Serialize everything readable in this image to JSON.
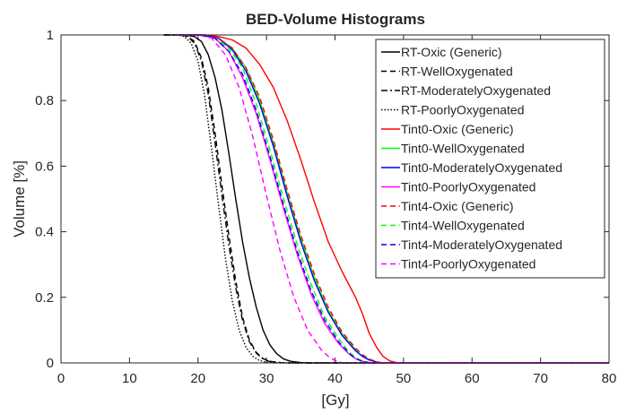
{
  "chart_data": {
    "type": "line",
    "title": "BED-Volume Histograms",
    "xlabel": "[Gy]",
    "ylabel": "Volume [%]",
    "xlim": [
      0,
      80
    ],
    "ylim": [
      0,
      1
    ],
    "xticks": [
      0,
      10,
      20,
      30,
      40,
      50,
      60,
      70,
      80
    ],
    "yticks": [
      0,
      0.2,
      0.4,
      0.6,
      0.8,
      1
    ],
    "xtick_labels": [
      "0",
      "10",
      "20",
      "30",
      "40",
      "50",
      "60",
      "70",
      "80"
    ],
    "ytick_labels": [
      "0",
      "0.2",
      "0.4",
      "0.6",
      "0.8",
      "1"
    ],
    "grid": false,
    "legend_position": "top-right",
    "series": [
      {
        "name": "RT-Oxic (Generic)",
        "color": "#000000",
        "dash": "solid",
        "points": [
          [
            15,
            1
          ],
          [
            18,
            1
          ],
          [
            19.5,
            0.995
          ],
          [
            20.5,
            0.98
          ],
          [
            21.5,
            0.94
          ],
          [
            22.5,
            0.87
          ],
          [
            23.5,
            0.77
          ],
          [
            24.5,
            0.64
          ],
          [
            25.5,
            0.5
          ],
          [
            26.5,
            0.37
          ],
          [
            27.5,
            0.26
          ],
          [
            28.5,
            0.17
          ],
          [
            29.5,
            0.1
          ],
          [
            30.5,
            0.055
          ],
          [
            31.5,
            0.028
          ],
          [
            32.5,
            0.012
          ],
          [
            33.5,
            0.005
          ],
          [
            35,
            0.001
          ],
          [
            36,
            0
          ],
          [
            80,
            0
          ]
        ]
      },
      {
        "name": "RT-WellOxygenated",
        "color": "#000000",
        "dash": "dashed",
        "points": [
          [
            15,
            1
          ],
          [
            17.5,
            1
          ],
          [
            18.5,
            0.995
          ],
          [
            19.5,
            0.98
          ],
          [
            20.5,
            0.93
          ],
          [
            21.5,
            0.84
          ],
          [
            22.5,
            0.7
          ],
          [
            23.5,
            0.54
          ],
          [
            24.5,
            0.39
          ],
          [
            25.5,
            0.25
          ],
          [
            26.5,
            0.14
          ],
          [
            27.5,
            0.07
          ],
          [
            28.5,
            0.032
          ],
          [
            29.5,
            0.013
          ],
          [
            30.5,
            0.005
          ],
          [
            32,
            0.001
          ],
          [
            33,
            0
          ],
          [
            80,
            0
          ]
        ]
      },
      {
        "name": "RT-ModeratelyOxygenated",
        "color": "#000000",
        "dash": "dashdot",
        "points": [
          [
            15,
            1
          ],
          [
            17.5,
            1
          ],
          [
            18.5,
            0.995
          ],
          [
            19.5,
            0.975
          ],
          [
            20.5,
            0.92
          ],
          [
            21.5,
            0.82
          ],
          [
            22.5,
            0.67
          ],
          [
            23.5,
            0.51
          ],
          [
            24.5,
            0.36
          ],
          [
            25.5,
            0.23
          ],
          [
            26.5,
            0.13
          ],
          [
            27.5,
            0.065
          ],
          [
            28.5,
            0.03
          ],
          [
            29.5,
            0.012
          ],
          [
            30.5,
            0.004
          ],
          [
            32,
            0.001
          ],
          [
            33,
            0
          ],
          [
            80,
            0
          ]
        ]
      },
      {
        "name": "RT-PoorlyOxygenated",
        "color": "#000000",
        "dash": "dotted",
        "points": [
          [
            15,
            1
          ],
          [
            17,
            1
          ],
          [
            18,
            0.995
          ],
          [
            19,
            0.975
          ],
          [
            20,
            0.92
          ],
          [
            21,
            0.81
          ],
          [
            22,
            0.65
          ],
          [
            23,
            0.48
          ],
          [
            24,
            0.32
          ],
          [
            25,
            0.19
          ],
          [
            26,
            0.1
          ],
          [
            27,
            0.048
          ],
          [
            28,
            0.02
          ],
          [
            29,
            0.007
          ],
          [
            30,
            0.002
          ],
          [
            31,
            0
          ],
          [
            80,
            0
          ]
        ]
      },
      {
        "name": "Tint0-Oxic (Generic)",
        "color": "#ff0000",
        "dash": "solid",
        "points": [
          [
            17,
            1
          ],
          [
            21,
            1
          ],
          [
            23,
            0.995
          ],
          [
            25,
            0.985
          ],
          [
            27,
            0.96
          ],
          [
            29,
            0.91
          ],
          [
            31,
            0.84
          ],
          [
            33,
            0.74
          ],
          [
            35,
            0.62
          ],
          [
            37,
            0.49
          ],
          [
            39,
            0.37
          ],
          [
            41,
            0.28
          ],
          [
            43,
            0.2
          ],
          [
            44,
            0.15
          ],
          [
            45,
            0.09
          ],
          [
            46,
            0.05
          ],
          [
            47,
            0.02
          ],
          [
            48,
            0.006
          ],
          [
            49,
            0.001
          ],
          [
            50,
            0
          ],
          [
            80,
            0
          ]
        ]
      },
      {
        "name": "Tint0-WellOxygenated",
        "color": "#00ff00",
        "dash": "solid",
        "points": [
          [
            17,
            1
          ],
          [
            21,
            1
          ],
          [
            23,
            0.99
          ],
          [
            25,
            0.96
          ],
          [
            27,
            0.9
          ],
          [
            29,
            0.8
          ],
          [
            31,
            0.67
          ],
          [
            33,
            0.52
          ],
          [
            35,
            0.38
          ],
          [
            37,
            0.26
          ],
          [
            39,
            0.16
          ],
          [
            41,
            0.09
          ],
          [
            43,
            0.04
          ],
          [
            44,
            0.02
          ],
          [
            45,
            0.01
          ],
          [
            46,
            0.003
          ],
          [
            47,
            0
          ],
          [
            80,
            0
          ]
        ]
      },
      {
        "name": "Tint0-ModeratelyOxygenated",
        "color": "#0000ff",
        "dash": "solid",
        "points": [
          [
            17,
            1
          ],
          [
            21,
            1
          ],
          [
            23,
            0.99
          ],
          [
            25,
            0.955
          ],
          [
            27,
            0.89
          ],
          [
            29,
            0.79
          ],
          [
            31,
            0.66
          ],
          [
            33,
            0.51
          ],
          [
            35,
            0.37
          ],
          [
            37,
            0.25
          ],
          [
            39,
            0.155
          ],
          [
            41,
            0.085
          ],
          [
            43,
            0.037
          ],
          [
            44,
            0.02
          ],
          [
            45,
            0.009
          ],
          [
            46,
            0.003
          ],
          [
            47,
            0
          ],
          [
            80,
            0
          ]
        ]
      },
      {
        "name": "Tint0-PoorlyOxygenated",
        "color": "#ff00ff",
        "dash": "solid",
        "points": [
          [
            17,
            1
          ],
          [
            20.5,
            1
          ],
          [
            22.5,
            0.99
          ],
          [
            24.5,
            0.95
          ],
          [
            26.5,
            0.87
          ],
          [
            28.5,
            0.76
          ],
          [
            30.5,
            0.62
          ],
          [
            32.5,
            0.47
          ],
          [
            34.5,
            0.33
          ],
          [
            36.5,
            0.21
          ],
          [
            38.5,
            0.12
          ],
          [
            40.5,
            0.06
          ],
          [
            42,
            0.028
          ],
          [
            43,
            0.013
          ],
          [
            44,
            0.005
          ],
          [
            45,
            0.001
          ],
          [
            46,
            0
          ],
          [
            80,
            0
          ]
        ]
      },
      {
        "name": "Tint4-Oxic (Generic)",
        "color": "#ff0000",
        "dash": "dashed",
        "points": [
          [
            17,
            1
          ],
          [
            21,
            1
          ],
          [
            23,
            0.99
          ],
          [
            25,
            0.96
          ],
          [
            27,
            0.9
          ],
          [
            29,
            0.81
          ],
          [
            31,
            0.68
          ],
          [
            33,
            0.53
          ],
          [
            35,
            0.39
          ],
          [
            37,
            0.27
          ],
          [
            39,
            0.17
          ],
          [
            41,
            0.095
          ],
          [
            43,
            0.045
          ],
          [
            44,
            0.025
          ],
          [
            45,
            0.012
          ],
          [
            46,
            0.004
          ],
          [
            47,
            0
          ],
          [
            80,
            0
          ]
        ]
      },
      {
        "name": "Tint4-WellOxygenated",
        "color": "#00ff00",
        "dash": "dashed",
        "points": [
          [
            17,
            1
          ],
          [
            20.5,
            1
          ],
          [
            22.5,
            0.99
          ],
          [
            24.5,
            0.96
          ],
          [
            26.5,
            0.9
          ],
          [
            28.5,
            0.79
          ],
          [
            30.5,
            0.65
          ],
          [
            32.5,
            0.5
          ],
          [
            34.5,
            0.36
          ],
          [
            36.5,
            0.24
          ],
          [
            38.5,
            0.14
          ],
          [
            40.5,
            0.075
          ],
          [
            42,
            0.035
          ],
          [
            43,
            0.016
          ],
          [
            44,
            0.006
          ],
          [
            45,
            0.001
          ],
          [
            46,
            0
          ],
          [
            80,
            0
          ]
        ]
      },
      {
        "name": "Tint4-ModeratelyOxygenated",
        "color": "#0000ff",
        "dash": "dashed",
        "points": [
          [
            17,
            1
          ],
          [
            20.5,
            1
          ],
          [
            22.5,
            0.99
          ],
          [
            24.5,
            0.95
          ],
          [
            26.5,
            0.88
          ],
          [
            28.5,
            0.77
          ],
          [
            30.5,
            0.63
          ],
          [
            32.5,
            0.48
          ],
          [
            34.5,
            0.34
          ],
          [
            36.5,
            0.22
          ],
          [
            38.5,
            0.13
          ],
          [
            40.5,
            0.065
          ],
          [
            42,
            0.03
          ],
          [
            43,
            0.013
          ],
          [
            44,
            0.004
          ],
          [
            45,
            0.001
          ],
          [
            46,
            0
          ],
          [
            80,
            0
          ]
        ]
      },
      {
        "name": "Tint4-PoorlyOxygenated",
        "color": "#ff00ff",
        "dash": "dashed",
        "points": [
          [
            16.5,
            1
          ],
          [
            20,
            1
          ],
          [
            22,
            0.99
          ],
          [
            24,
            0.94
          ],
          [
            26,
            0.84
          ],
          [
            28,
            0.69
          ],
          [
            30,
            0.51
          ],
          [
            32,
            0.34
          ],
          [
            34,
            0.2
          ],
          [
            36,
            0.1
          ],
          [
            38,
            0.04
          ],
          [
            39,
            0.02
          ],
          [
            40,
            0.007
          ],
          [
            41,
            0.001
          ],
          [
            42,
            0
          ],
          [
            80,
            0
          ]
        ]
      }
    ]
  }
}
